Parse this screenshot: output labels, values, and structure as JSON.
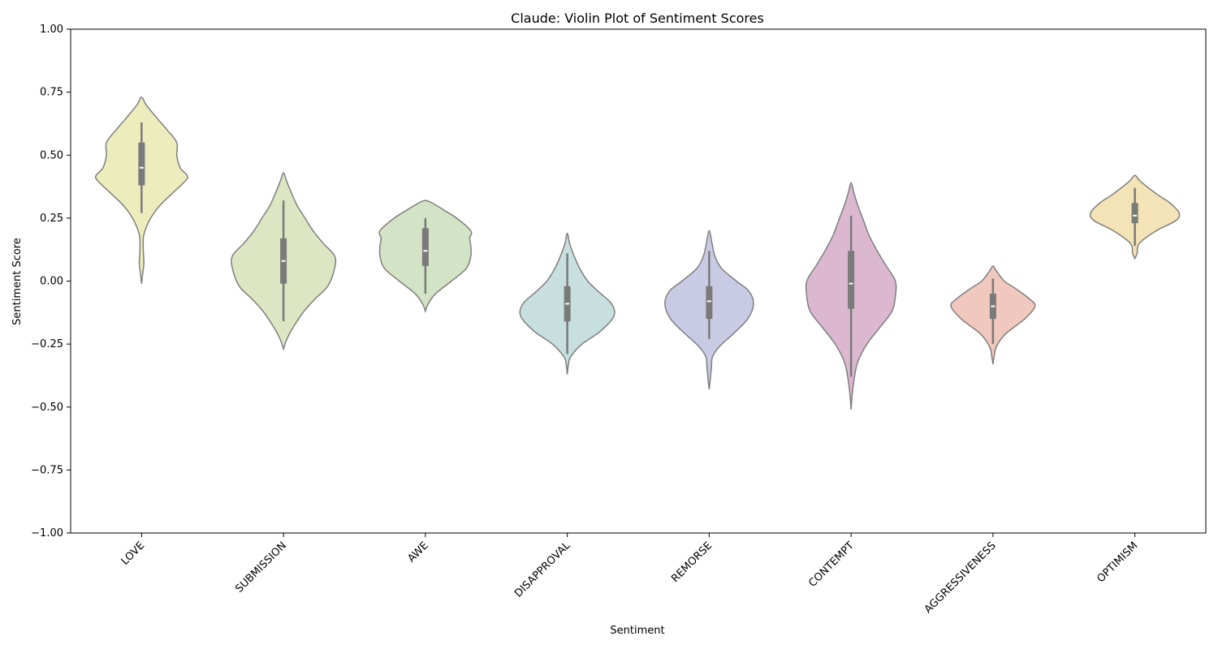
{
  "chart_data": {
    "type": "violin",
    "title": "Claude: Violin Plot of Sentiment Scores",
    "xlabel": "Sentiment",
    "ylabel": "Sentiment Score",
    "ylim": [
      -1.0,
      1.0
    ],
    "yticks": [
      "−1.00",
      "−0.75",
      "−0.50",
      "−0.25",
      "0.00",
      "0.25",
      "0.50",
      "0.75",
      "1.00"
    ],
    "ytick_values": [
      -1.0,
      -0.75,
      -0.5,
      -0.25,
      0.0,
      0.25,
      0.5,
      0.75,
      1.0
    ],
    "grid": false,
    "series": [
      {
        "category": "LOVE",
        "color": "#ececbd",
        "min": 0.27,
        "q1": 0.38,
        "median": 0.45,
        "q3": 0.55,
        "max": 0.63,
        "density": [
          [
            -0.01,
            0.0
          ],
          [
            0.03,
            0.02
          ],
          [
            0.07,
            0.04
          ],
          [
            0.12,
            0.03
          ],
          [
            0.17,
            0.03
          ],
          [
            0.2,
            0.06
          ],
          [
            0.25,
            0.16
          ],
          [
            0.3,
            0.32
          ],
          [
            0.35,
            0.55
          ],
          [
            0.4,
            0.78
          ],
          [
            0.42,
            0.8
          ],
          [
            0.45,
            0.68
          ],
          [
            0.5,
            0.62
          ],
          [
            0.55,
            0.62
          ],
          [
            0.6,
            0.45
          ],
          [
            0.65,
            0.26
          ],
          [
            0.7,
            0.08
          ],
          [
            0.73,
            0.0
          ]
        ]
      },
      {
        "category": "SUBMISSION",
        "color": "#dde6c3",
        "min": -0.16,
        "q1": -0.01,
        "median": 0.08,
        "q3": 0.17,
        "max": 0.32,
        "density": [
          [
            -0.27,
            0.0
          ],
          [
            -0.23,
            0.06
          ],
          [
            -0.18,
            0.18
          ],
          [
            -0.12,
            0.36
          ],
          [
            -0.07,
            0.56
          ],
          [
            -0.02,
            0.78
          ],
          [
            0.05,
            0.9
          ],
          [
            0.1,
            0.9
          ],
          [
            0.15,
            0.7
          ],
          [
            0.2,
            0.52
          ],
          [
            0.25,
            0.38
          ],
          [
            0.3,
            0.24
          ],
          [
            0.35,
            0.14
          ],
          [
            0.4,
            0.05
          ],
          [
            0.43,
            0.0
          ]
        ]
      },
      {
        "category": "AWE",
        "color": "#d2e3c6",
        "min": -0.05,
        "q1": 0.06,
        "median": 0.12,
        "q3": 0.21,
        "max": 0.25,
        "density": [
          [
            -0.12,
            0.0
          ],
          [
            -0.09,
            0.05
          ],
          [
            -0.05,
            0.18
          ],
          [
            0.0,
            0.46
          ],
          [
            0.05,
            0.72
          ],
          [
            0.1,
            0.8
          ],
          [
            0.14,
            0.8
          ],
          [
            0.17,
            0.78
          ],
          [
            0.2,
            0.8
          ],
          [
            0.25,
            0.55
          ],
          [
            0.28,
            0.34
          ],
          [
            0.31,
            0.12
          ],
          [
            0.32,
            0.0
          ]
        ]
      },
      {
        "category": "DISAPPROVAL",
        "color": "#c8dfe0",
        "min": -0.29,
        "q1": -0.16,
        "median": -0.09,
        "q3": -0.02,
        "max": 0.11,
        "density": [
          [
            -0.37,
            0.0
          ],
          [
            -0.33,
            0.02
          ],
          [
            -0.3,
            0.06
          ],
          [
            -0.25,
            0.26
          ],
          [
            -0.2,
            0.58
          ],
          [
            -0.14,
            0.82
          ],
          [
            -0.09,
            0.78
          ],
          [
            -0.04,
            0.54
          ],
          [
            0.0,
            0.36
          ],
          [
            0.05,
            0.22
          ],
          [
            0.1,
            0.12
          ],
          [
            0.15,
            0.04
          ],
          [
            0.19,
            0.0
          ]
        ]
      },
      {
        "category": "REMORSE",
        "color": "#c9cbe5",
        "min": -0.23,
        "q1": -0.15,
        "median": -0.08,
        "q3": -0.02,
        "max": 0.12,
        "density": [
          [
            -0.43,
            0.0
          ],
          [
            -0.39,
            0.02
          ],
          [
            -0.34,
            0.04
          ],
          [
            -0.3,
            0.06
          ],
          [
            -0.26,
            0.18
          ],
          [
            -0.21,
            0.42
          ],
          [
            -0.15,
            0.68
          ],
          [
            -0.09,
            0.78
          ],
          [
            -0.04,
            0.7
          ],
          [
            0.0,
            0.48
          ],
          [
            0.05,
            0.22
          ],
          [
            0.1,
            0.1
          ],
          [
            0.15,
            0.05
          ],
          [
            0.2,
            0.0
          ]
        ]
      },
      {
        "category": "CONTEMPT",
        "color": "#dcb8d0",
        "min": -0.38,
        "q1": -0.11,
        "median": -0.01,
        "q3": 0.12,
        "max": 0.26,
        "density": [
          [
            -0.51,
            0.0
          ],
          [
            -0.45,
            0.02
          ],
          [
            -0.38,
            0.06
          ],
          [
            -0.32,
            0.12
          ],
          [
            -0.25,
            0.28
          ],
          [
            -0.18,
            0.52
          ],
          [
            -0.12,
            0.72
          ],
          [
            -0.06,
            0.78
          ],
          [
            0.0,
            0.78
          ],
          [
            0.06,
            0.62
          ],
          [
            0.12,
            0.46
          ],
          [
            0.18,
            0.32
          ],
          [
            0.24,
            0.22
          ],
          [
            0.3,
            0.12
          ],
          [
            0.35,
            0.05
          ],
          [
            0.39,
            0.0
          ]
        ]
      },
      {
        "category": "AGGRESSIVENESS",
        "color": "#f1c8bd",
        "min": -0.25,
        "q1": -0.15,
        "median": -0.1,
        "q3": -0.05,
        "max": 0.01,
        "density": [
          [
            -0.33,
            0.0
          ],
          [
            -0.3,
            0.02
          ],
          [
            -0.26,
            0.06
          ],
          [
            -0.21,
            0.22
          ],
          [
            -0.15,
            0.56
          ],
          [
            -0.1,
            0.74
          ],
          [
            -0.07,
            0.64
          ],
          [
            -0.03,
            0.4
          ],
          [
            0.0,
            0.2
          ],
          [
            0.04,
            0.06
          ],
          [
            0.06,
            0.0
          ]
        ]
      },
      {
        "category": "OPTIMISM",
        "color": "#f3e3b6",
        "min": 0.14,
        "q1": 0.23,
        "median": 0.26,
        "q3": 0.31,
        "max": 0.37,
        "density": [
          [
            0.09,
            0.0
          ],
          [
            0.11,
            0.04
          ],
          [
            0.15,
            0.08
          ],
          [
            0.2,
            0.38
          ],
          [
            0.24,
            0.72
          ],
          [
            0.27,
            0.78
          ],
          [
            0.31,
            0.62
          ],
          [
            0.34,
            0.42
          ],
          [
            0.37,
            0.24
          ],
          [
            0.4,
            0.08
          ],
          [
            0.42,
            0.0
          ]
        ]
      }
    ]
  }
}
